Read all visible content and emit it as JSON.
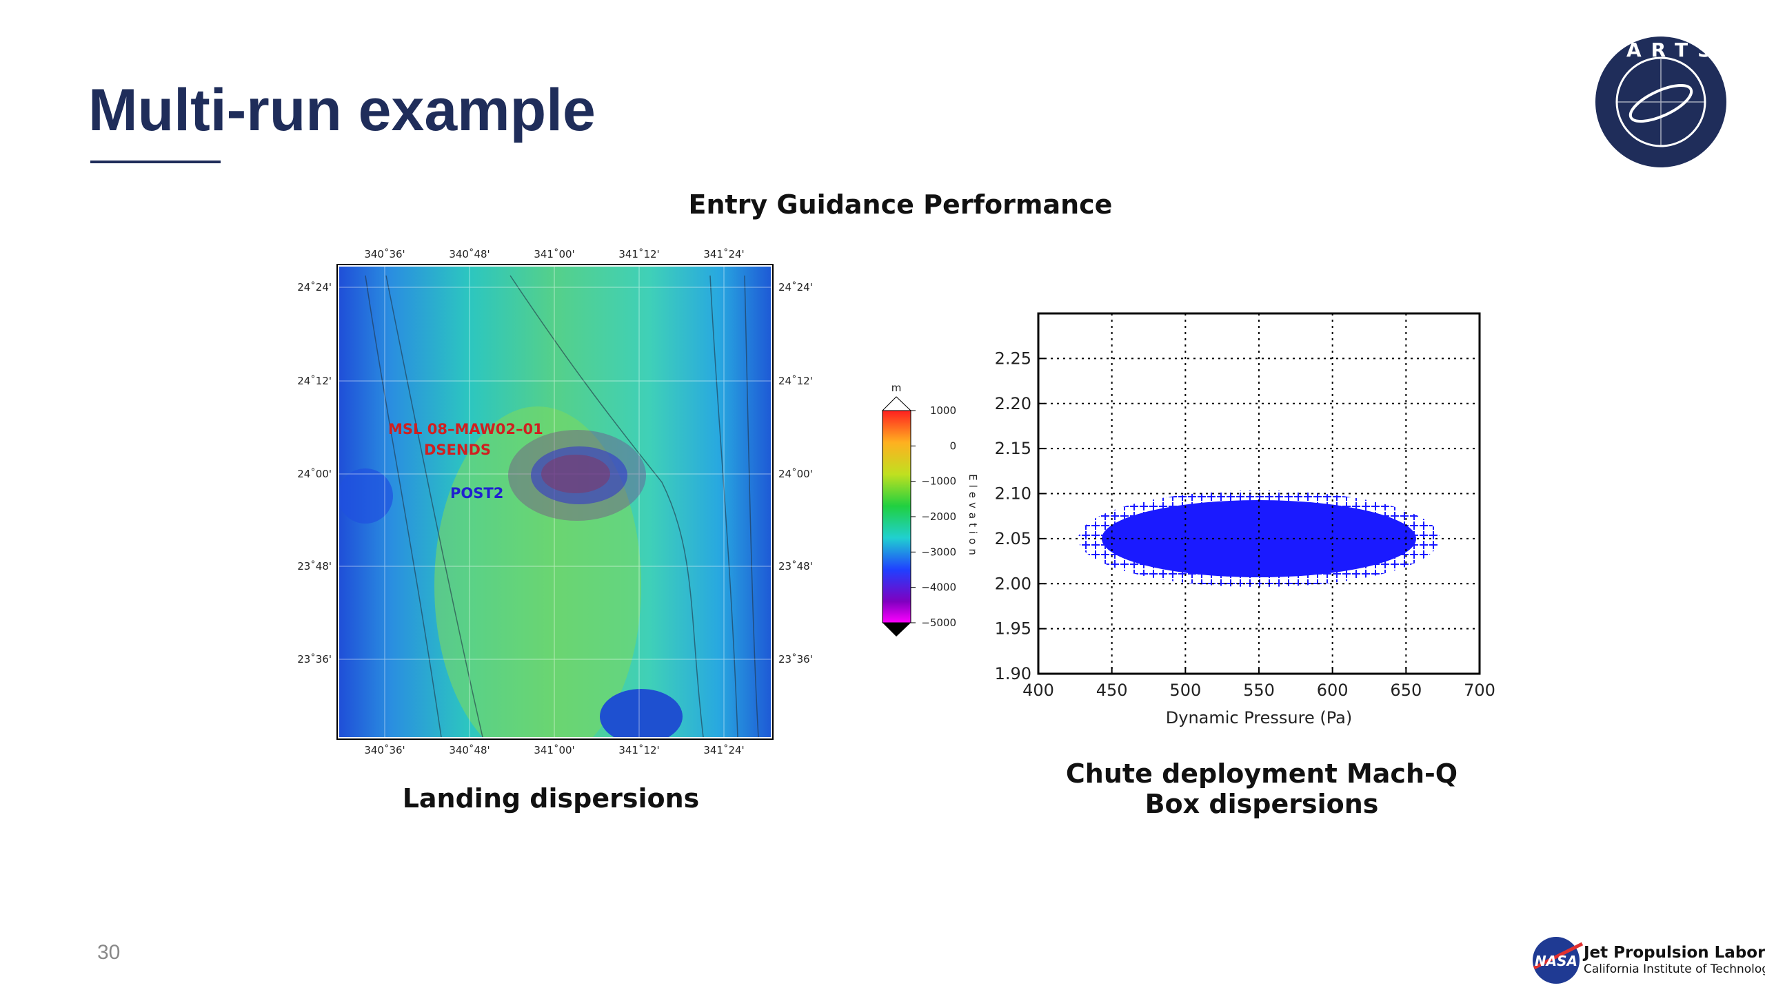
{
  "header": {
    "title": "Multi-run example"
  },
  "section_title": "Entry Guidance Performance",
  "map": {
    "caption": "Landing dispersions",
    "lon_labels": [
      "340˚36'",
      "340˚48'",
      "341˚00'",
      "341˚12'",
      "341˚24'"
    ],
    "lat_labels": [
      "24˚24'",
      "24˚12'",
      "24˚00'",
      "23˚48'",
      "23˚36'"
    ],
    "annotations": [
      "MSL 08–MAW02–01",
      "DSENDS",
      "POST2"
    ],
    "colorbar": {
      "unit": "m",
      "label": "Elevation",
      "ticks": [
        "1000",
        "0",
        "−1000",
        "−2000",
        "−3000",
        "−4000",
        "−5000"
      ]
    }
  },
  "chart_data": {
    "type": "scatter",
    "xlabel": "Dynamic Pressure (Pa)",
    "xlim": [
      400,
      700
    ],
    "xticks": [
      400,
      450,
      500,
      550,
      600,
      650,
      700
    ],
    "ylim": [
      1.9,
      2.3
    ],
    "yticks": [
      {
        "value": 1.9,
        "label": "1.90"
      },
      1.95,
      {
        "value": 2.0,
        "label": "2.00"
      },
      2.05,
      {
        "value": 2.1,
        "label": "2.10"
      },
      2.15,
      {
        "value": 2.2,
        "label": "2.20"
      },
      2.25
    ],
    "grid": true,
    "color": "#1a1aff",
    "caption": [
      "Chute deployment Mach-Q",
      "Box dispersions"
    ]
  },
  "footer": {
    "page_number": "30",
    "org": "Jet Propulsion Laboratory",
    "org_sub": "California Institute of Technology",
    "logo_text": "DARTS",
    "nasa": "NASA"
  }
}
